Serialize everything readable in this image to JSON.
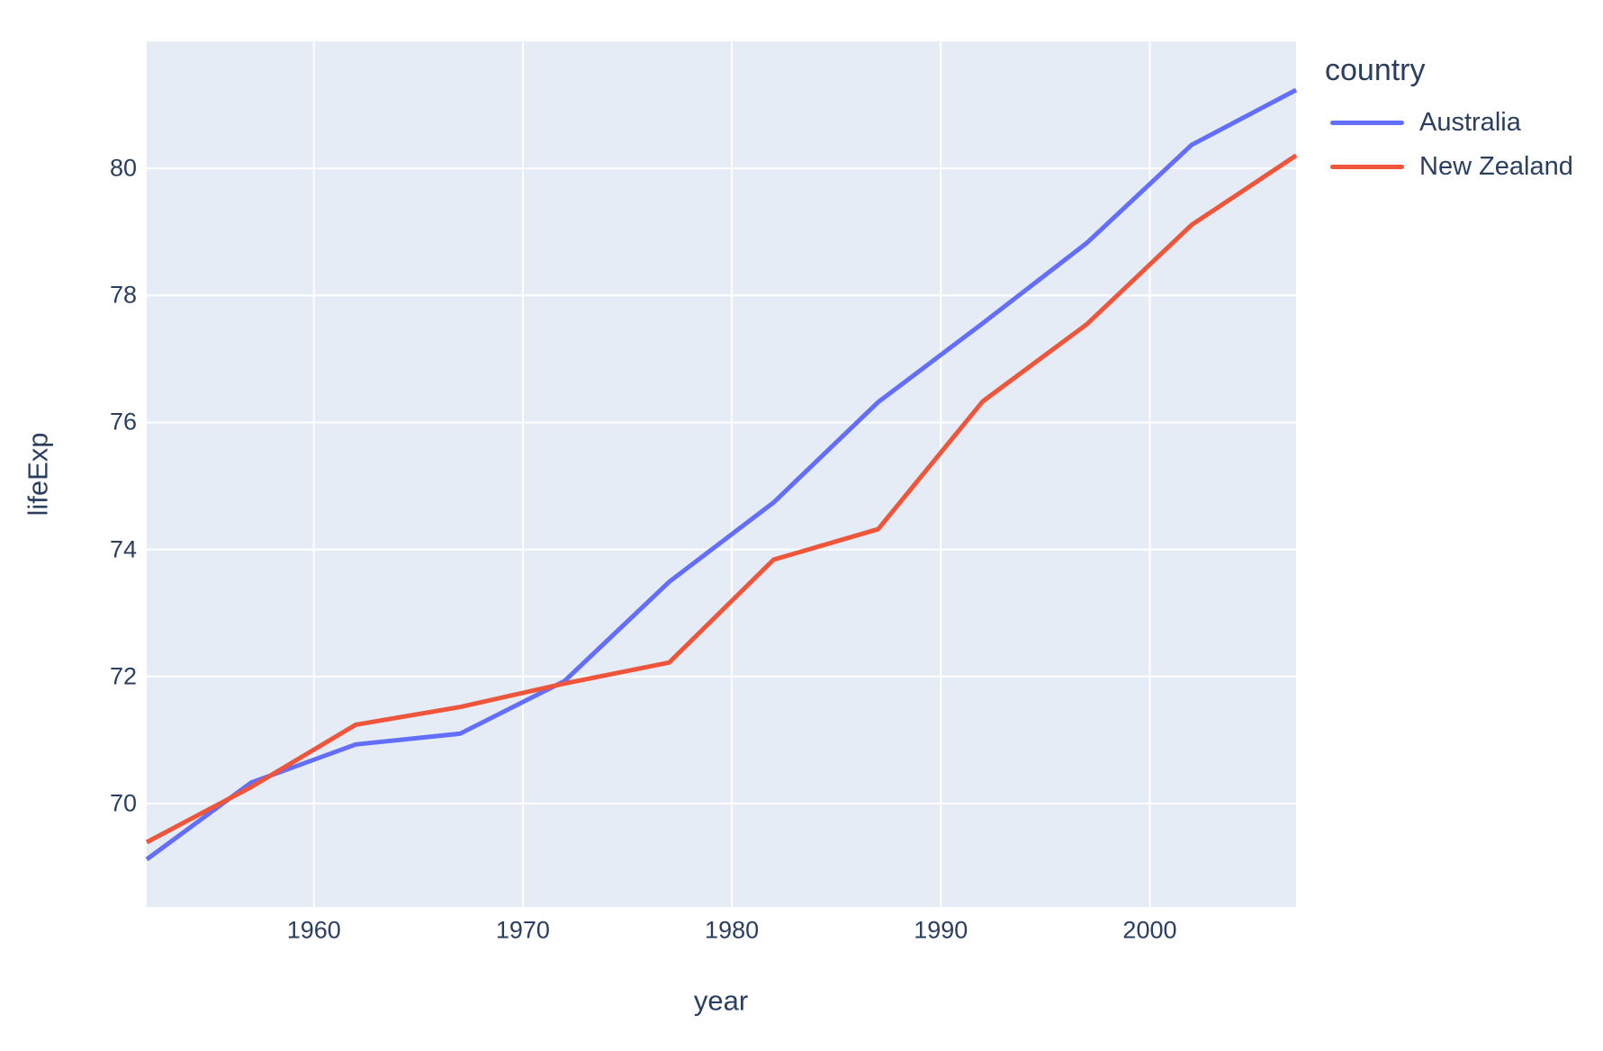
{
  "chart_data": {
    "type": "line",
    "xlabel": "year",
    "ylabel": "lifeExp",
    "legend_title": "country",
    "x": [
      1952,
      1957,
      1962,
      1967,
      1972,
      1977,
      1982,
      1987,
      1992,
      1997,
      2002,
      2007
    ],
    "series": [
      {
        "name": "Australia",
        "color": "#636EFA",
        "values": [
          69.12,
          70.33,
          70.93,
          71.1,
          71.93,
          73.49,
          74.74,
          76.32,
          77.56,
          78.83,
          80.37,
          81.235
        ]
      },
      {
        "name": "New Zealand",
        "color": "#EF553B",
        "values": [
          69.39,
          70.26,
          71.24,
          71.52,
          71.89,
          72.22,
          73.84,
          74.32,
          76.33,
          77.55,
          79.11,
          80.204
        ]
      }
    ],
    "xticks": [
      1960,
      1970,
      1980,
      1990,
      2000
    ],
    "yticks": [
      70,
      72,
      74,
      76,
      78,
      80
    ],
    "xlim": [
      1952,
      2007
    ],
    "ylim": [
      68.37,
      82.0
    ],
    "grid": true,
    "legend_position": "right",
    "colors": {
      "plot_background": "#E5ECF6",
      "grid": "#FFFFFF",
      "font": "#2a3f5f",
      "page_background": "#FFFFFF"
    }
  }
}
